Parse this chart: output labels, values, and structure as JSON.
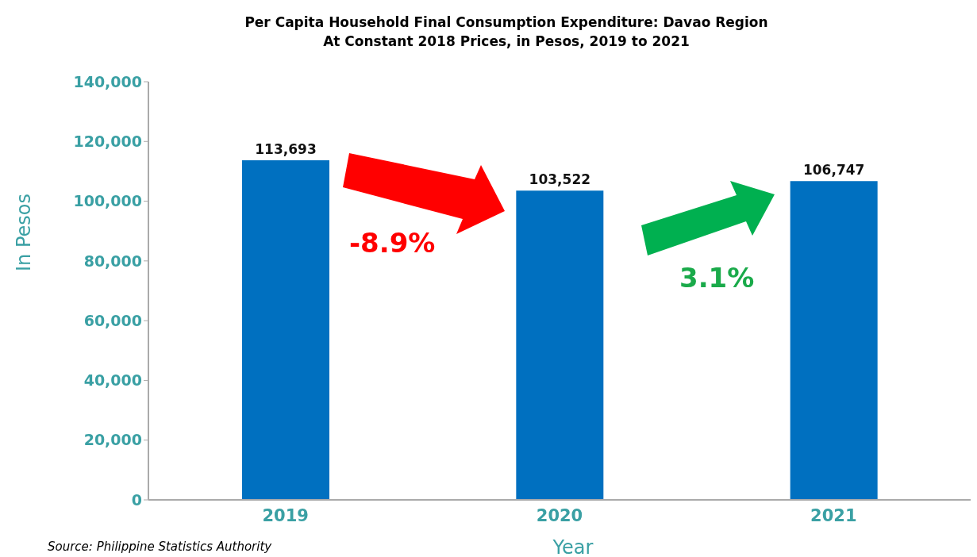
{
  "chart_data": {
    "type": "bar",
    "title": "Per Capita Household Final Consumption Expenditure: Davao Region\nAt Constant 2018 Prices, in Pesos, 2019 to 2021",
    "xlabel": "Year",
    "ylabel": "In Pesos",
    "categories": [
      "2019",
      "2020",
      "2021"
    ],
    "values": [
      113693,
      103522,
      106747
    ],
    "value_labels": [
      "113,693",
      "103,522",
      "106,747"
    ],
    "color": "#0070c0",
    "ylim": [
      0,
      140000
    ],
    "yticks": [
      {
        "value": 0,
        "label": "0"
      },
      {
        "value": 20000,
        "label": "20,000"
      },
      {
        "value": 40000,
        "label": "40,000"
      },
      {
        "value": 60000,
        "label": "60,000"
      },
      {
        "value": 80000,
        "label": "80,000"
      },
      {
        "value": 100000,
        "label": "100,000"
      },
      {
        "value": 120000,
        "label": "120,000"
      },
      {
        "value": 140000,
        "label": "140,000"
      }
    ],
    "grid": false,
    "legend": false,
    "annotations": [
      "-8.9%",
      "3.1%",
      "Source: Philippine Statistics Authority"
    ]
  }
}
